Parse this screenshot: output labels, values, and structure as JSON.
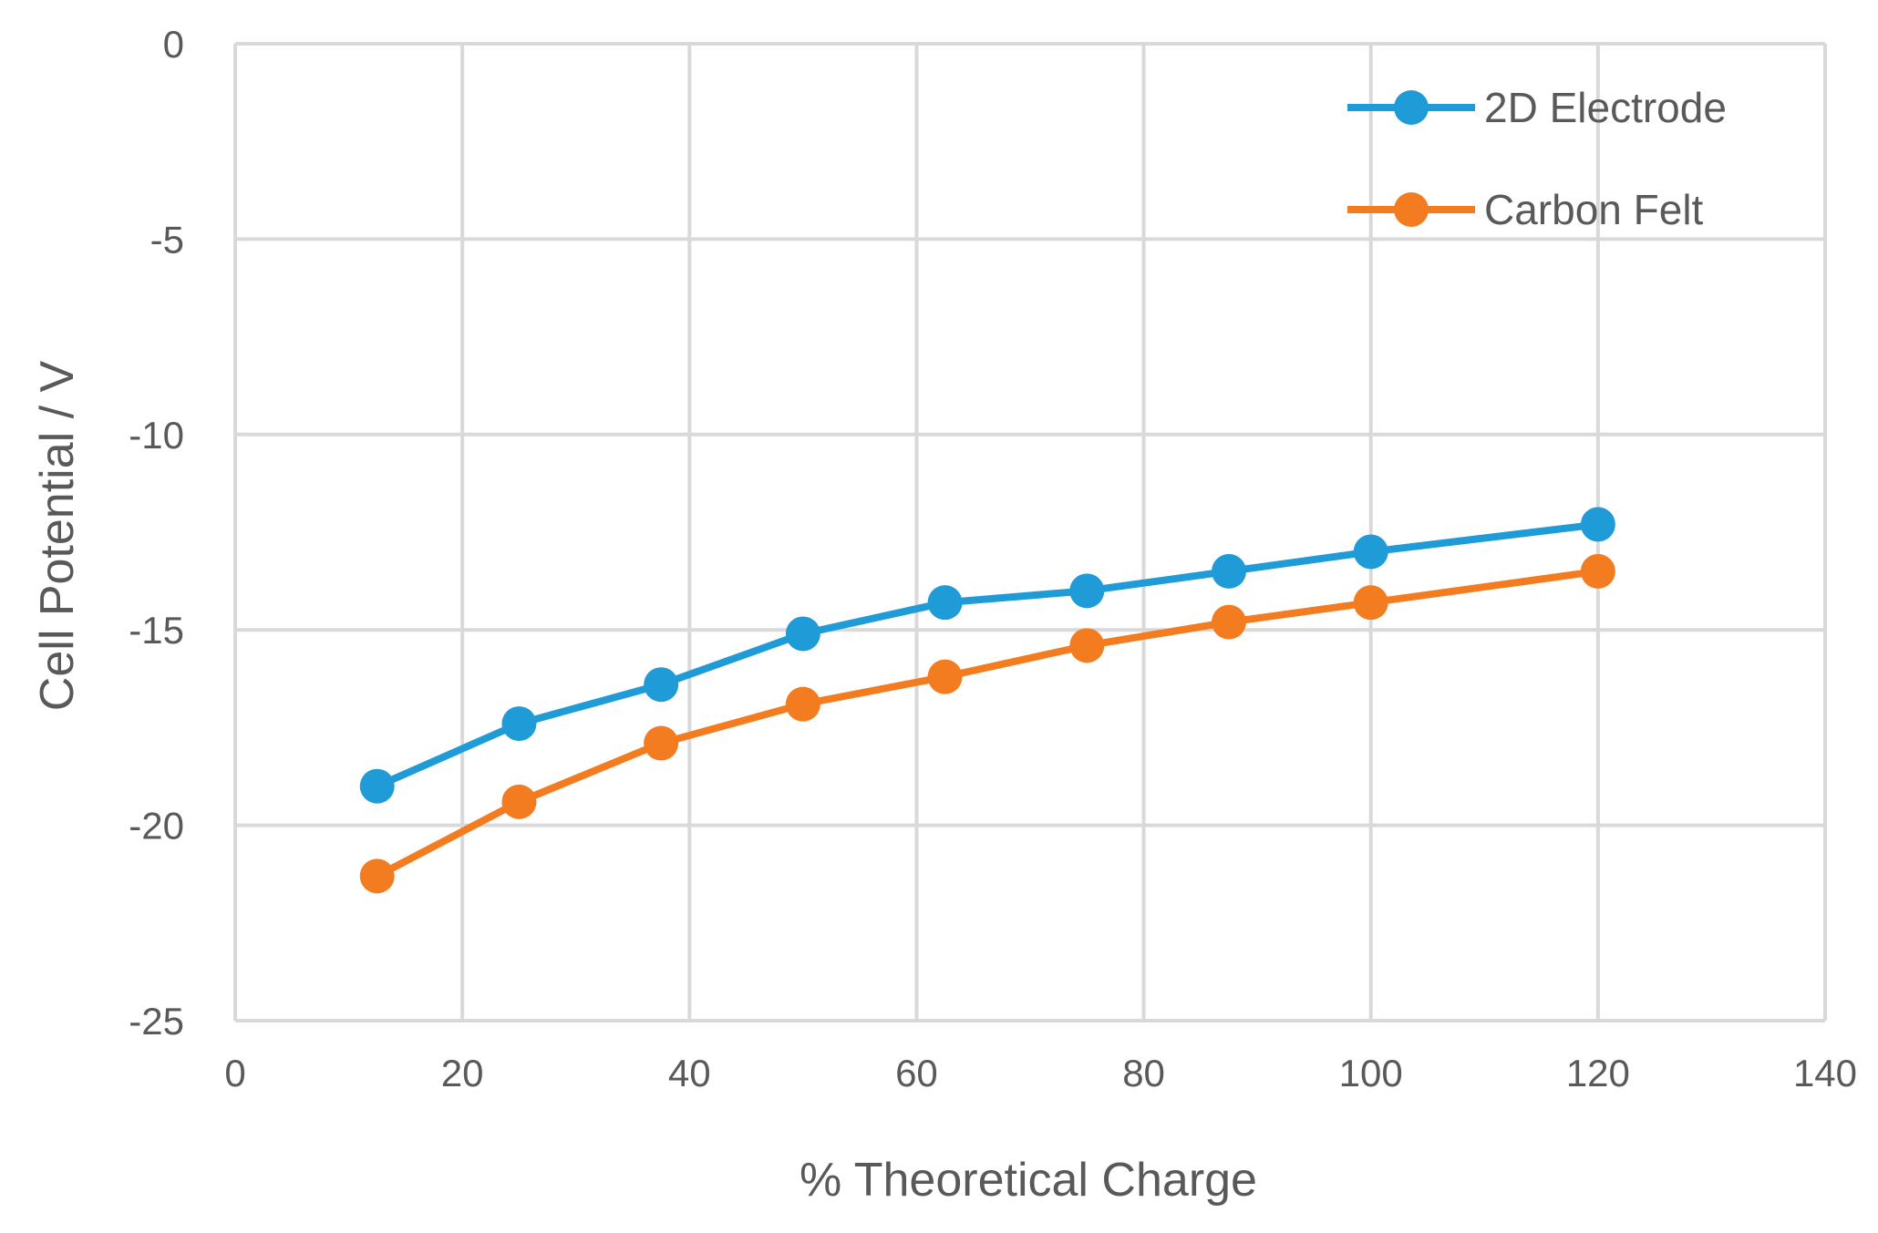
{
  "chart_data": {
    "type": "line",
    "title": "",
    "xlabel": "% Theoretical Charge",
    "ylabel": "Cell Potential / V",
    "xlim": [
      0,
      140
    ],
    "ylim": [
      -25,
      0
    ],
    "xticks": [
      0,
      20,
      40,
      60,
      80,
      100,
      120,
      140
    ],
    "yticks": [
      0,
      -5,
      -10,
      -15,
      -20,
      -25
    ],
    "grid": true,
    "legend_position": "top-right",
    "series": [
      {
        "name": "2D Electrode",
        "color": "#1f9bd7",
        "x": [
          12.5,
          25,
          37.5,
          50,
          62.5,
          75,
          87.5,
          100,
          120
        ],
        "y": [
          -19.0,
          -17.4,
          -16.4,
          -15.1,
          -14.3,
          -14.0,
          -13.5,
          -13.0,
          -12.3
        ]
      },
      {
        "name": "Carbon Felt",
        "color": "#f47c20",
        "x": [
          12.5,
          25,
          37.5,
          50,
          62.5,
          75,
          87.5,
          100,
          120
        ],
        "y": [
          -21.3,
          -19.4,
          -17.9,
          -16.9,
          -16.2,
          -15.4,
          -14.8,
          -14.3,
          -13.5
        ]
      }
    ]
  }
}
